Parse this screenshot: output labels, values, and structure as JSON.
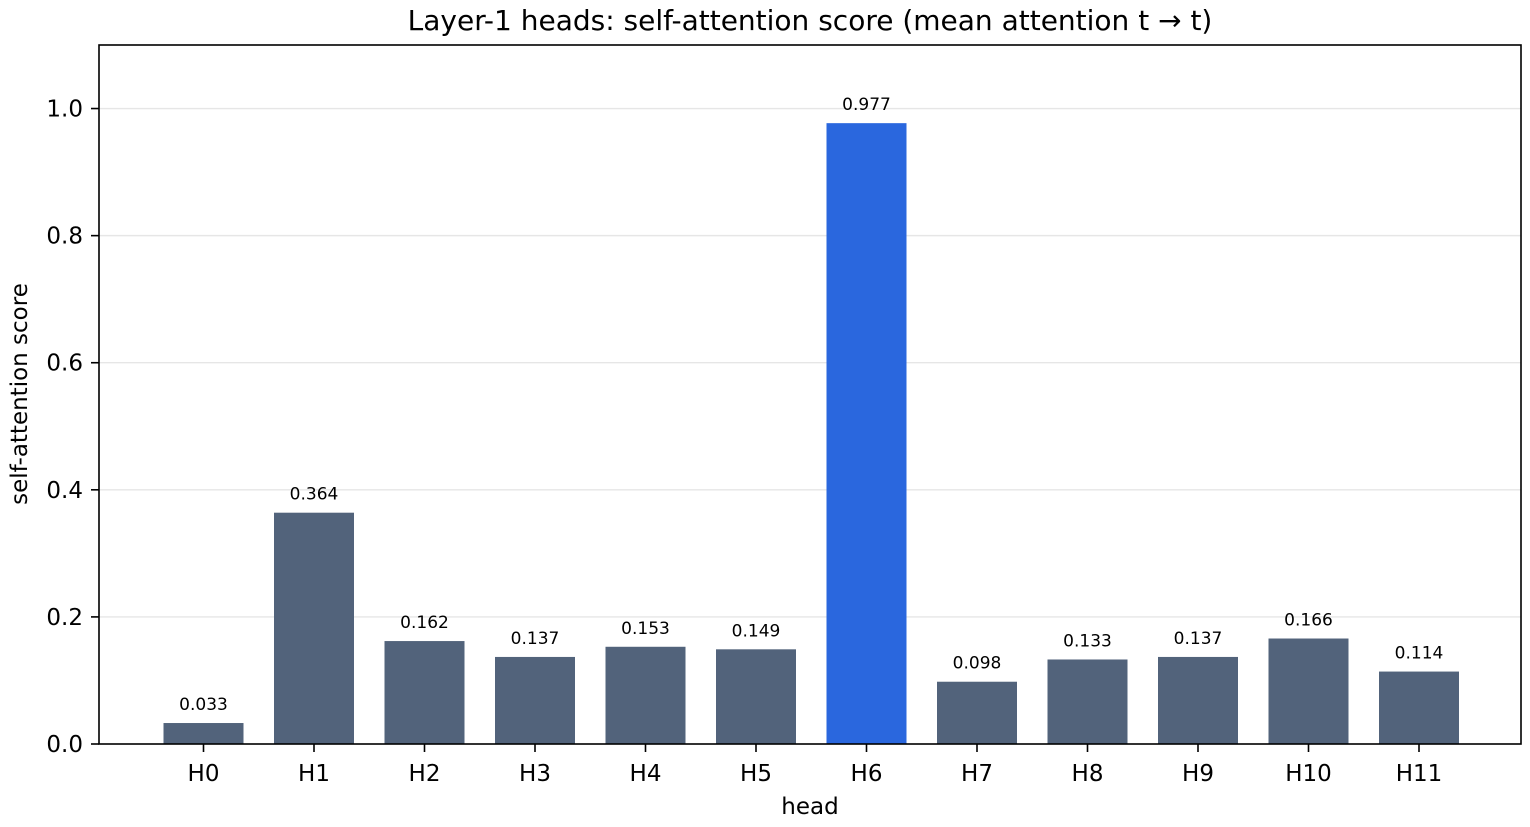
{
  "chart_data": {
    "type": "bar",
    "title": "Layer-1 heads: self-attention score  (mean attention t → t)",
    "xlabel": "head",
    "ylabel": "self-attention score",
    "categories": [
      "H0",
      "H1",
      "H2",
      "H3",
      "H4",
      "H5",
      "H6",
      "H7",
      "H8",
      "H9",
      "H10",
      "H11"
    ],
    "values": [
      0.033,
      0.364,
      0.162,
      0.137,
      0.153,
      0.149,
      0.977,
      0.098,
      0.133,
      0.137,
      0.166,
      0.114
    ],
    "data_labels": [
      "0.033",
      "0.364",
      "0.162",
      "0.137",
      "0.153",
      "0.149",
      "0.977",
      "0.098",
      "0.133",
      "0.137",
      "0.166",
      "0.114"
    ],
    "ylim": [
      0,
      1.1
    ],
    "yticks": [
      0.0,
      0.2,
      0.4,
      0.6,
      0.8,
      1.0
    ],
    "ytick_labels": [
      "0.0",
      "0.2",
      "0.4",
      "0.6",
      "0.8",
      "1.0"
    ],
    "grid": "horizontal",
    "highlight_index": 6,
    "colors": {
      "bar": "#52637b",
      "highlight": "#2a67de",
      "grid": "#e6e6e6",
      "axis": "#000000"
    }
  }
}
